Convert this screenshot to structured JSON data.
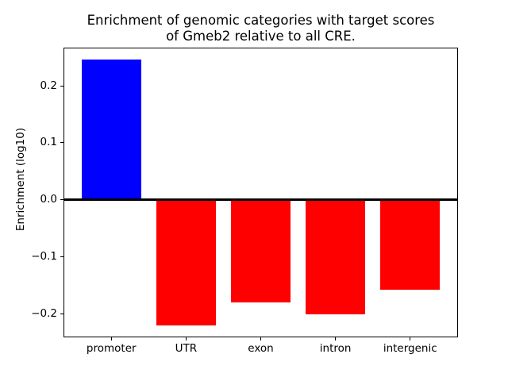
{
  "chart_data": {
    "type": "bar",
    "title": "Enrichment of genomic categories with target scores of Gmeb2 relative to all CRE.",
    "title_lines": [
      "Enrichment of genomic categories with target scores",
      "of Gmeb2 relative to all CRE."
    ],
    "xlabel": "",
    "ylabel": "Enrichment (log10)",
    "categories": [
      "promoter",
      "UTR",
      "exon",
      "intron",
      "intergenic"
    ],
    "values": [
      0.246,
      -0.22,
      -0.18,
      -0.2,
      -0.158
    ],
    "bar_colors": [
      "#0000ff",
      "#ff0000",
      "#ff0000",
      "#ff0000",
      "#ff0000"
    ],
    "ylim": [
      -0.241,
      0.267
    ],
    "yticks": [
      0.2,
      0.1,
      0.0,
      -0.1,
      -0.2
    ],
    "ytick_labels": [
      "0.2",
      "0.1",
      "0.0",
      "−0.1",
      "−0.2"
    ],
    "zero_line": true,
    "grid": false,
    "legend_position": "none",
    "bar_width_fraction": 0.8,
    "x_margin_units": 0.64,
    "background_color": "#ffffff",
    "axis_color": "#000000"
  }
}
